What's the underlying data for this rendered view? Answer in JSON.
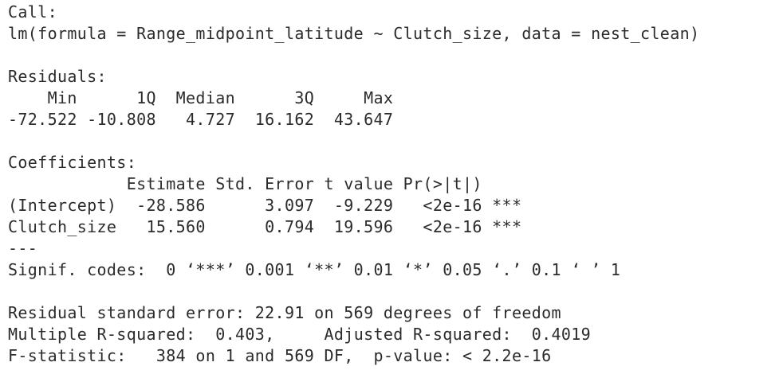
{
  "call": {
    "header": "Call:",
    "formula": "lm(formula = Range_midpoint_latitude ~ Clutch_size, data = nest_clean)"
  },
  "residuals": {
    "header": "Residuals:",
    "labels_line": "    Min      1Q  Median      3Q     Max ",
    "values_line": "-72.522 -10.808   4.727  16.162  43.647 "
  },
  "coefficients": {
    "header": "Coefficients:",
    "columns_line": "            Estimate Std. Error t value Pr(>|t|)    ",
    "rows": [
      "(Intercept)  -28.586      3.097  -9.229   <2e-16 ***",
      "Clutch_size   15.560      0.794  19.596   <2e-16 ***"
    ],
    "separator": "---",
    "signif_codes": "Signif. codes:  0 ‘***’ 0.001 ‘**’ 0.01 ‘*’ 0.05 ‘.’ 0.1 ‘ ’ 1"
  },
  "summary": {
    "residual_se": "Residual standard error: 22.91 on 569 degrees of freedom",
    "r_squared": "Multiple R-squared:  0.403,\tAdjusted R-squared:  0.4019 ",
    "f_statistic": "F-statistic:   384 on 1 and 569 DF,  p-value: < 2.2e-16"
  }
}
